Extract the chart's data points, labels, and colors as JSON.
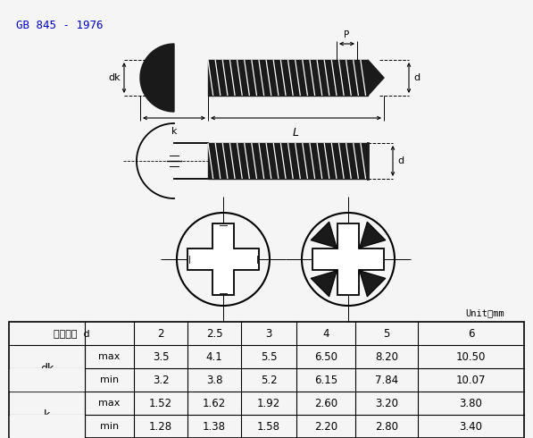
{
  "title": "GB 845 - 1976",
  "title_color": "#0000cc",
  "bg_color": "#f0f0f0",
  "table_header": [
    "螺纹规格  d",
    "2",
    "2.5",
    "3",
    "4",
    "5",
    "6"
  ],
  "table_data": [
    [
      "dk",
      "max",
      "3.5",
      "4.1",
      "5.5",
      "6.50",
      "8.20",
      "10.50"
    ],
    [
      "dk",
      "min",
      "3.2",
      "3.8",
      "5.2",
      "6.15",
      "7.84",
      "10.07"
    ],
    [
      "k",
      "max",
      "1.52",
      "1.62",
      "1.92",
      "2.60",
      "3.20",
      "3.80"
    ],
    [
      "k",
      "min",
      "1.28",
      "1.38",
      "1.58",
      "2.20",
      "2.80",
      "3.40"
    ]
  ],
  "unit_text": "Unit：mm",
  "line_color": "#000000",
  "table_line_color": "#000000",
  "screw_color": "#1a1a1a",
  "bg_light": "#f5f5f5"
}
